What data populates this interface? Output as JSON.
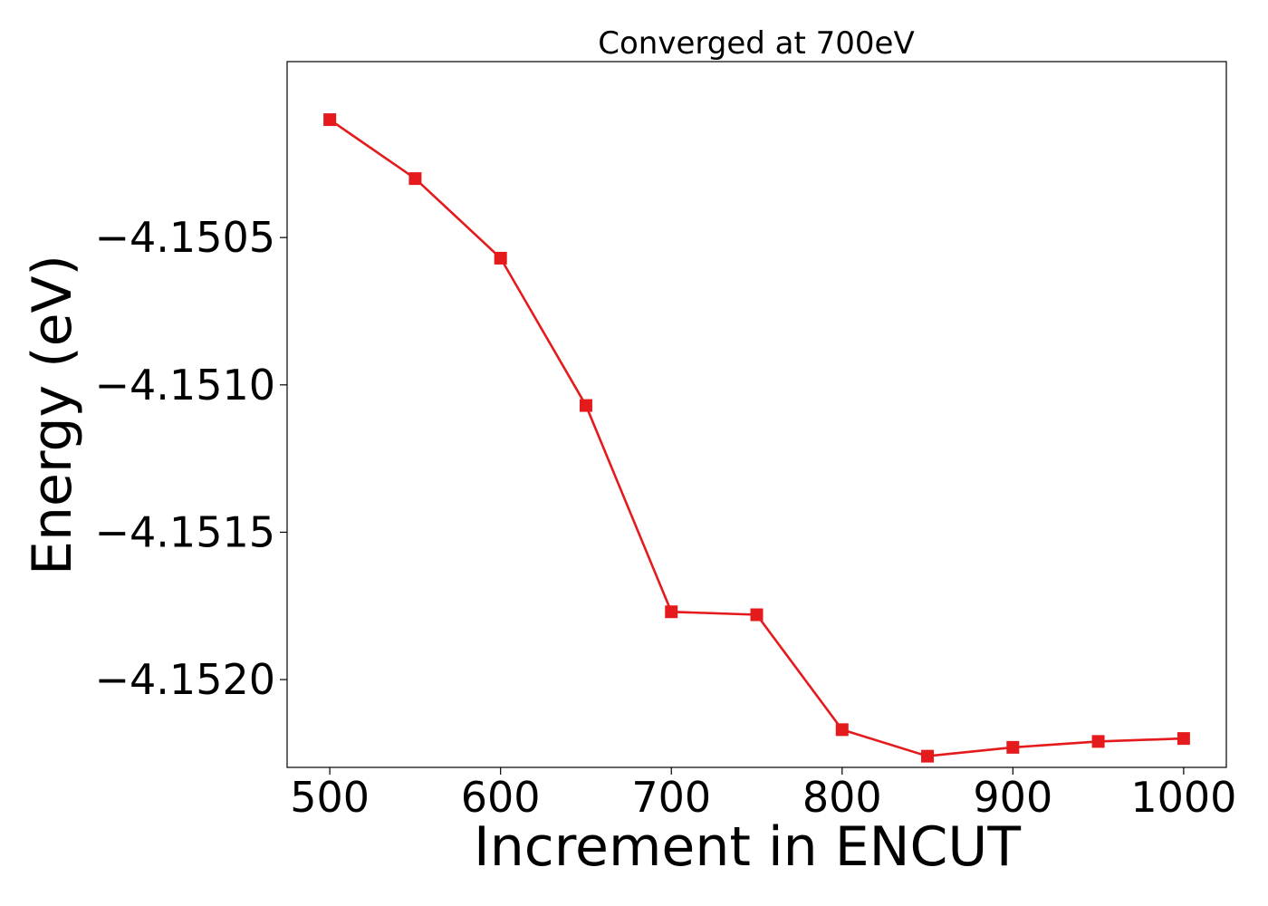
{
  "chart_data": {
    "type": "line",
    "title": "Converged at 700eV",
    "xlabel": "Increment in ENCUT",
    "ylabel": "Energy (eV)",
    "x": [
      500,
      550,
      600,
      650,
      700,
      750,
      800,
      850,
      900,
      950,
      1000
    ],
    "series": [
      {
        "values": [
          -4.1501,
          -4.1503,
          -4.15057,
          -4.15107,
          -4.15177,
          -4.15178,
          -4.15217,
          -4.15226,
          -4.15223,
          -4.15221,
          -4.1522
        ],
        "color": "#e41a1c",
        "marker": "square"
      }
    ],
    "xticks": [
      500,
      600,
      700,
      800,
      900,
      1000
    ],
    "xtick_labels": [
      "500",
      "600",
      "700",
      "800",
      "900",
      "1000"
    ],
    "yticks": [
      -4.1505,
      -4.151,
      -4.1515,
      -4.152
    ],
    "ytick_labels": [
      "−4.1505",
      "−4.1510",
      "−4.1515",
      "−4.1520"
    ],
    "xlim": [
      475,
      1025
    ],
    "ylim": [
      -4.152298,
      -4.149903
    ],
    "grid": false,
    "legend": "none"
  }
}
